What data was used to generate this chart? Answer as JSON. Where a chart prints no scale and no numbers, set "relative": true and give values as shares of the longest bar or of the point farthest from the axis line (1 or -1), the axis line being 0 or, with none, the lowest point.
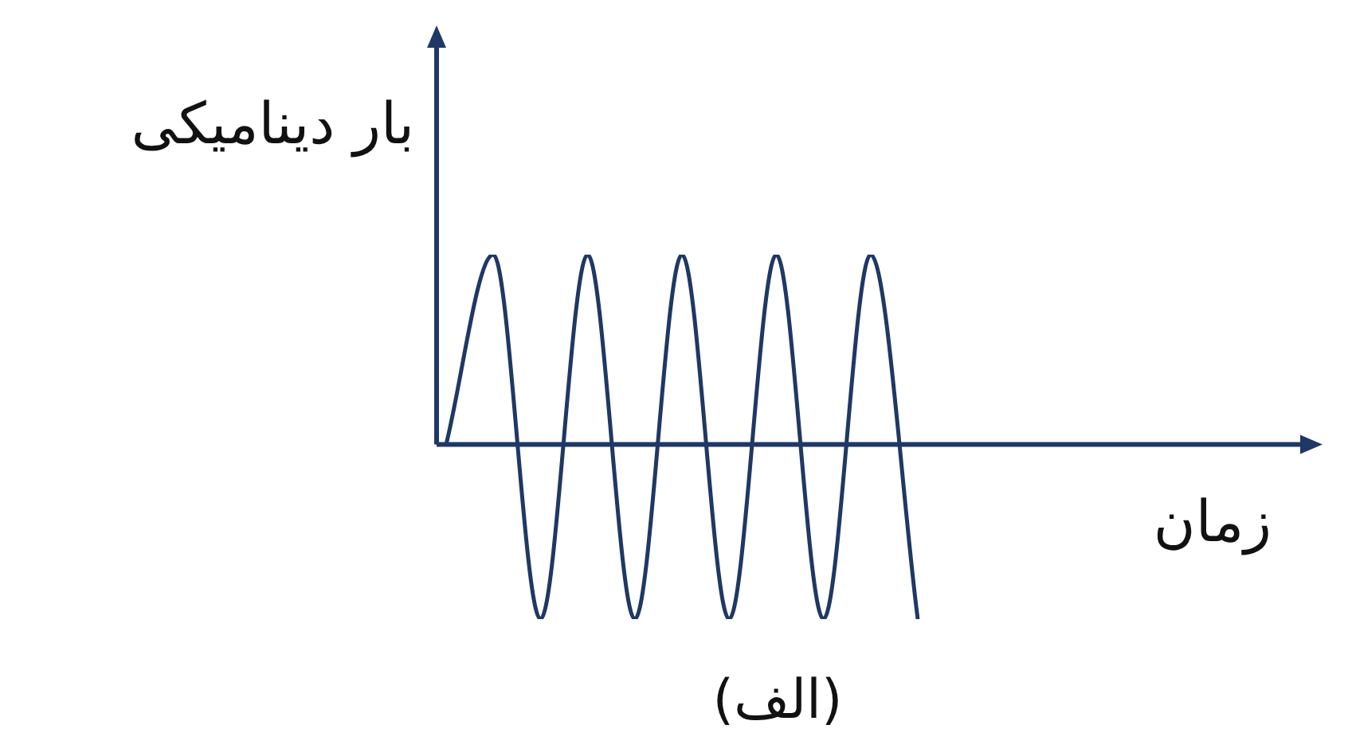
{
  "chart_data": {
    "type": "line",
    "relative": true,
    "ylabel": "بار دینامیکی",
    "xlabel": "زمان",
    "annotations": [
      "(الف)"
    ],
    "categories": [
      null,
      null,
      null,
      null,
      null,
      null,
      null,
      null,
      null,
      null,
      null
    ],
    "series": [
      {
        "color": "#1f3864",
        "values": [
          0,
          1,
          -0.92,
          1,
          -0.92,
          1,
          -0.92,
          1,
          -0.92,
          1,
          -0.92
        ]
      }
    ],
    "ref_lines": [
      {
        "axis": "y",
        "value": 0,
        "color": "#1f3864"
      }
    ],
    "marker": "none",
    "line_style": "solid",
    "legend": false
  }
}
